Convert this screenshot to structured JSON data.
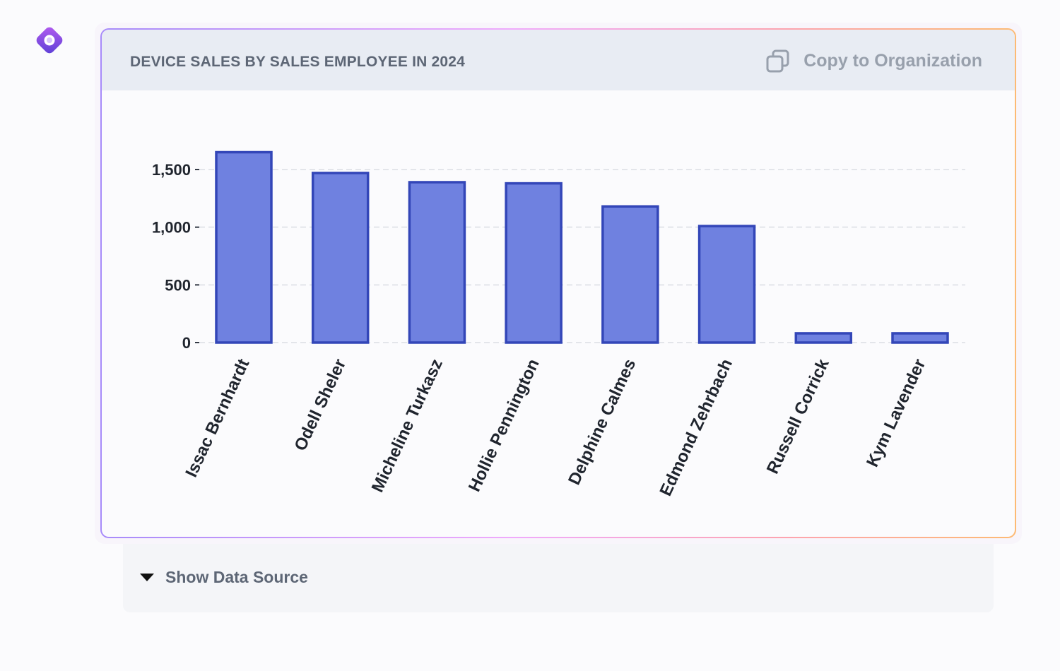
{
  "app": {
    "logo_icon": "diamond-ring-logo-icon"
  },
  "card": {
    "title": "DEVICE SALES BY SALES EMPLOYEE IN 2024",
    "copy_button_label": "Copy to Organization",
    "copy_icon": "copy-icon"
  },
  "data_source": {
    "toggle_label": "Show Data Source",
    "toggle_icon": "caret-down-icon"
  },
  "chart_data": {
    "type": "bar",
    "title": "DEVICE SALES BY SALES EMPLOYEE IN 2024",
    "xlabel": "",
    "ylabel": "",
    "categories": [
      "Issac Bernhardt",
      "Odell Sheler",
      "Micheline Turkasz",
      "Hollie Pennington",
      "Delphine Calmes",
      "Edmond Zehrbach",
      "Russell Corrick",
      "Kym Lavender"
    ],
    "values": [
      1650,
      1470,
      1390,
      1380,
      1180,
      1010,
      80,
      80
    ],
    "yticks": [
      0,
      500,
      1000,
      1500
    ],
    "ytick_labels": [
      "0",
      "500",
      "1,000",
      "1,500"
    ],
    "ylim": [
      0,
      1650
    ],
    "grid": true,
    "bar_fill": "#6f81e0",
    "bar_stroke": "#3346b8"
  }
}
